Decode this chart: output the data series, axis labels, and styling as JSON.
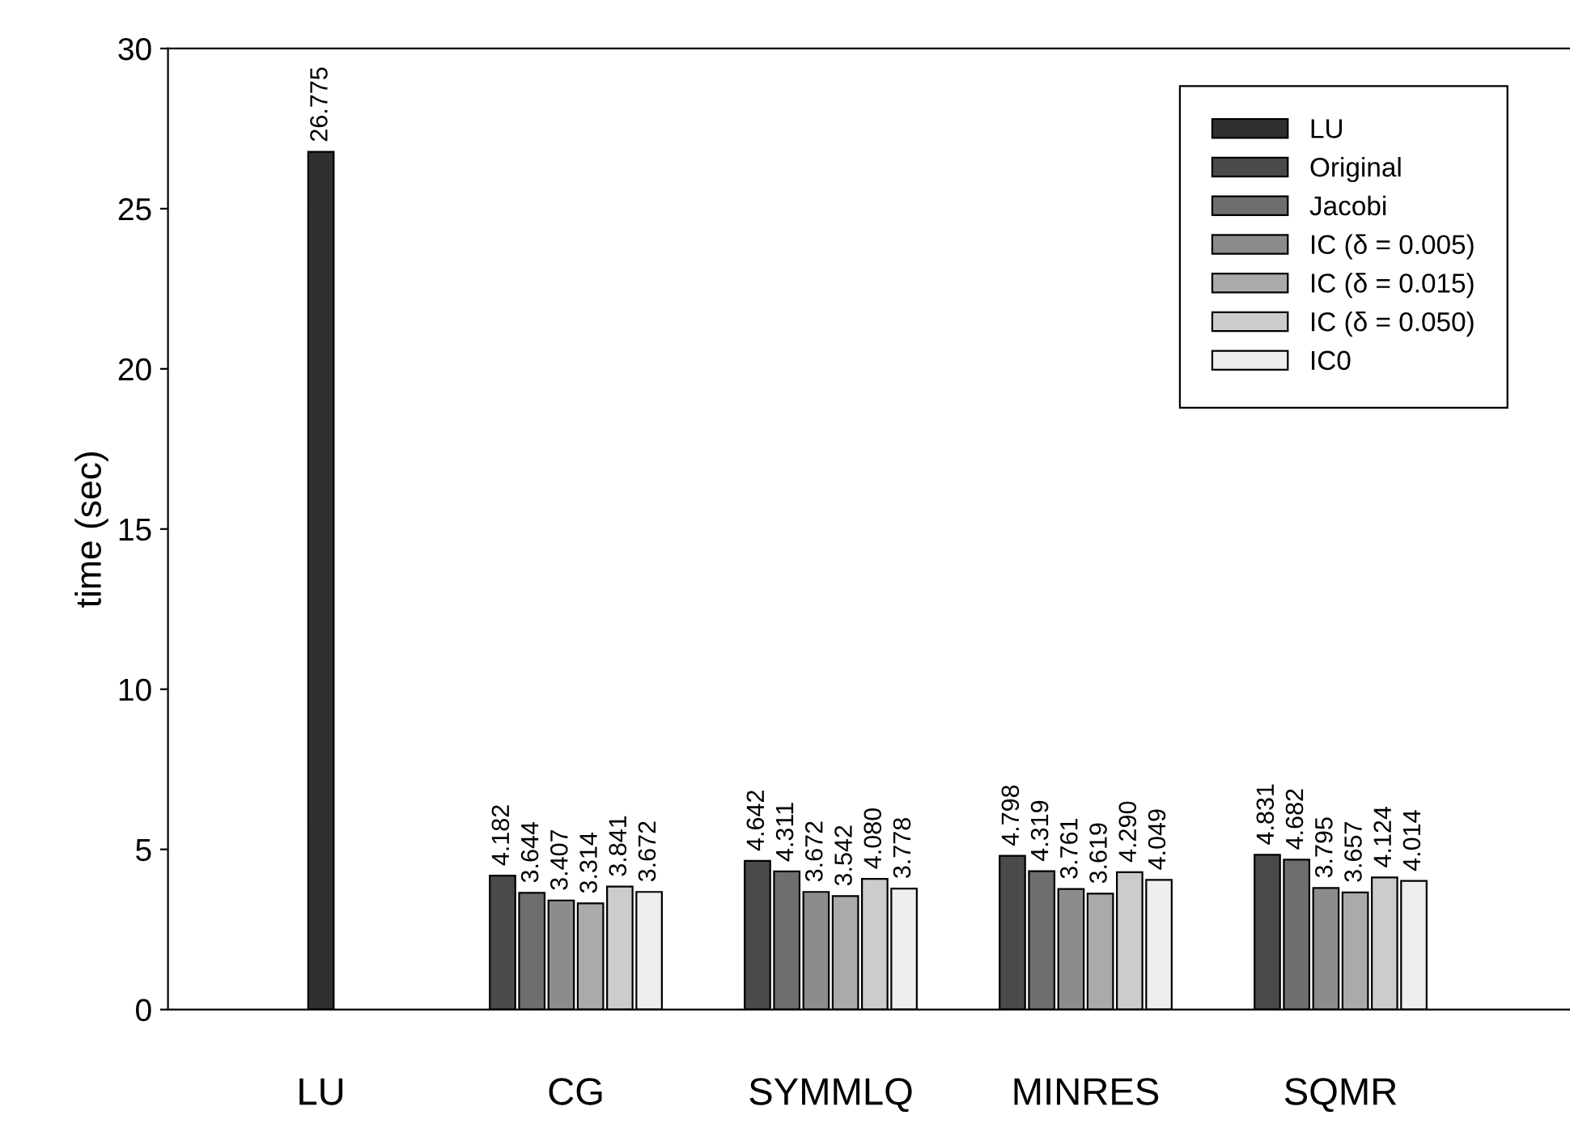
{
  "chart_data": {
    "type": "bar",
    "ylabel": "time (sec)",
    "categories": [
      "LU",
      "CG",
      "SYMMLQ",
      "MINRES",
      "SQMR"
    ],
    "series": [
      {
        "name": "LU",
        "color": "#303030",
        "values": [
          26.775,
          null,
          null,
          null,
          null
        ],
        "value_labels": [
          "26.775",
          null,
          null,
          null,
          null
        ]
      },
      {
        "name": "Original",
        "color": "#4a4a4a",
        "values": [
          null,
          4.182,
          4.642,
          4.798,
          4.831
        ],
        "value_labels": [
          null,
          "4.182",
          "4.642",
          "4.798",
          "4.831"
        ]
      },
      {
        "name": "Jacobi",
        "color": "#6e6e6e",
        "values": [
          null,
          3.644,
          4.311,
          4.319,
          4.682
        ],
        "value_labels": [
          null,
          "3.644",
          "4.311",
          "4.319",
          "4.682"
        ]
      },
      {
        "name": "IC (δ = 0.005)",
        "color": "#8c8c8c",
        "values": [
          null,
          3.407,
          3.672,
          3.761,
          3.795
        ],
        "value_labels": [
          null,
          "3.407",
          "3.672",
          "3.761",
          "3.795"
        ]
      },
      {
        "name": "IC (δ = 0.015)",
        "color": "#aaaaaa",
        "values": [
          null,
          3.314,
          3.542,
          3.619,
          3.657
        ],
        "value_labels": [
          null,
          "3.314",
          "3.542",
          "3.619",
          "3.657"
        ]
      },
      {
        "name": "IC (δ = 0.050)",
        "color": "#cccccc",
        "values": [
          null,
          3.841,
          4.08,
          4.29,
          4.124
        ],
        "value_labels": [
          null,
          "3.841",
          "4.080",
          "4.290",
          "4.124"
        ]
      },
      {
        "name": "IC0",
        "color": "#eeeeee",
        "values": [
          null,
          3.672,
          3.778,
          4.049,
          4.014
        ],
        "value_labels": [
          null,
          "3.672",
          "3.778",
          "4.049",
          "4.014"
        ]
      }
    ],
    "ylim": [
      0,
      30
    ],
    "yticks": [
      0,
      5,
      10,
      15,
      20,
      25,
      30
    ],
    "grid": false,
    "legend": "top right"
  }
}
